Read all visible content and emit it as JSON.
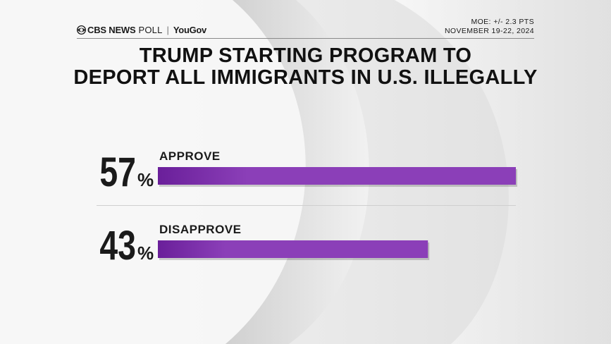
{
  "header": {
    "brand_name": "CBS NEWS",
    "brand_poll": "POLL",
    "separator": "|",
    "partner": "YouGov",
    "moe": "MOE: +/- 2.3 PTS",
    "dates": "NOVEMBER 19-22, 2024"
  },
  "title": {
    "line1": "TRUMP STARTING PROGRAM TO",
    "line2": "DEPORT ALL IMMIGRANTS IN U.S. ILLEGALLY"
  },
  "chart_data": {
    "type": "bar",
    "orientation": "horizontal",
    "title": "TRUMP STARTING PROGRAM TO DEPORT ALL IMMIGRANTS IN U.S. ILLEGALLY",
    "categories": [
      "APPROVE",
      "DISAPPROVE"
    ],
    "values": [
      57,
      43
    ],
    "value_labels": [
      "57",
      "43"
    ],
    "unit": "%",
    "xlim": [
      0,
      57
    ],
    "grid": false,
    "legend": "none",
    "bar_color": "#8b3fb8",
    "bar_color_dark": "#6a1f9a"
  },
  "colors": {
    "accent": "#8b3fb8",
    "text": "#111111"
  }
}
